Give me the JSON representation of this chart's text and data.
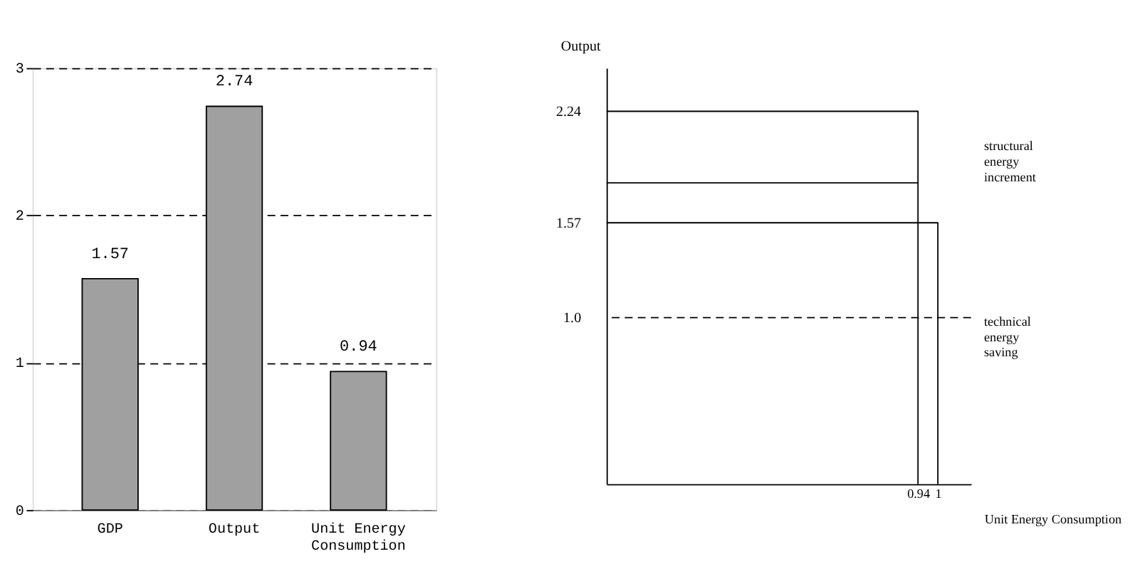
{
  "chart_data": [
    {
      "type": "bar",
      "categories": [
        "GDP",
        "Output",
        "Unit Energy Consumption"
      ],
      "values": [
        1.57,
        2.74,
        0.94
      ],
      "color": "#a0a0a0",
      "ylim": [
        0,
        3
      ],
      "yticks": [
        0,
        1,
        2,
        3
      ],
      "grid": "y",
      "data_labels": true
    },
    {
      "type": "line",
      "xlabel": "Unit Energy Consumption",
      "ylabel": "Output",
      "xlim": [
        0,
        1.1
      ],
      "ylim": [
        0,
        2.5
      ],
      "xticks": [
        0.94,
        1
      ],
      "yticks": [
        {
          "value": 1,
          "label": "1.0"
        },
        1.57,
        2.24
      ],
      "series": [
        {
          "color": "#000000",
          "x": [
            0,
            0.94,
            0.94
          ],
          "values": [
            2.24,
            2.24,
            0
          ]
        },
        {
          "color": "#000000",
          "x": [
            0,
            0.94
          ],
          "values": [
            1.81,
            1.81
          ]
        },
        {
          "color": "#000000",
          "x": [
            0,
            1,
            1
          ],
          "values": [
            1.57,
            1.57,
            0
          ]
        }
      ],
      "ref_lines": [
        {
          "axis": "y",
          "value": 1,
          "line_style": "dashed",
          "color": "#000000"
        }
      ],
      "annotations": [
        "structural energy increment",
        "technical energy saving"
      ]
    }
  ]
}
